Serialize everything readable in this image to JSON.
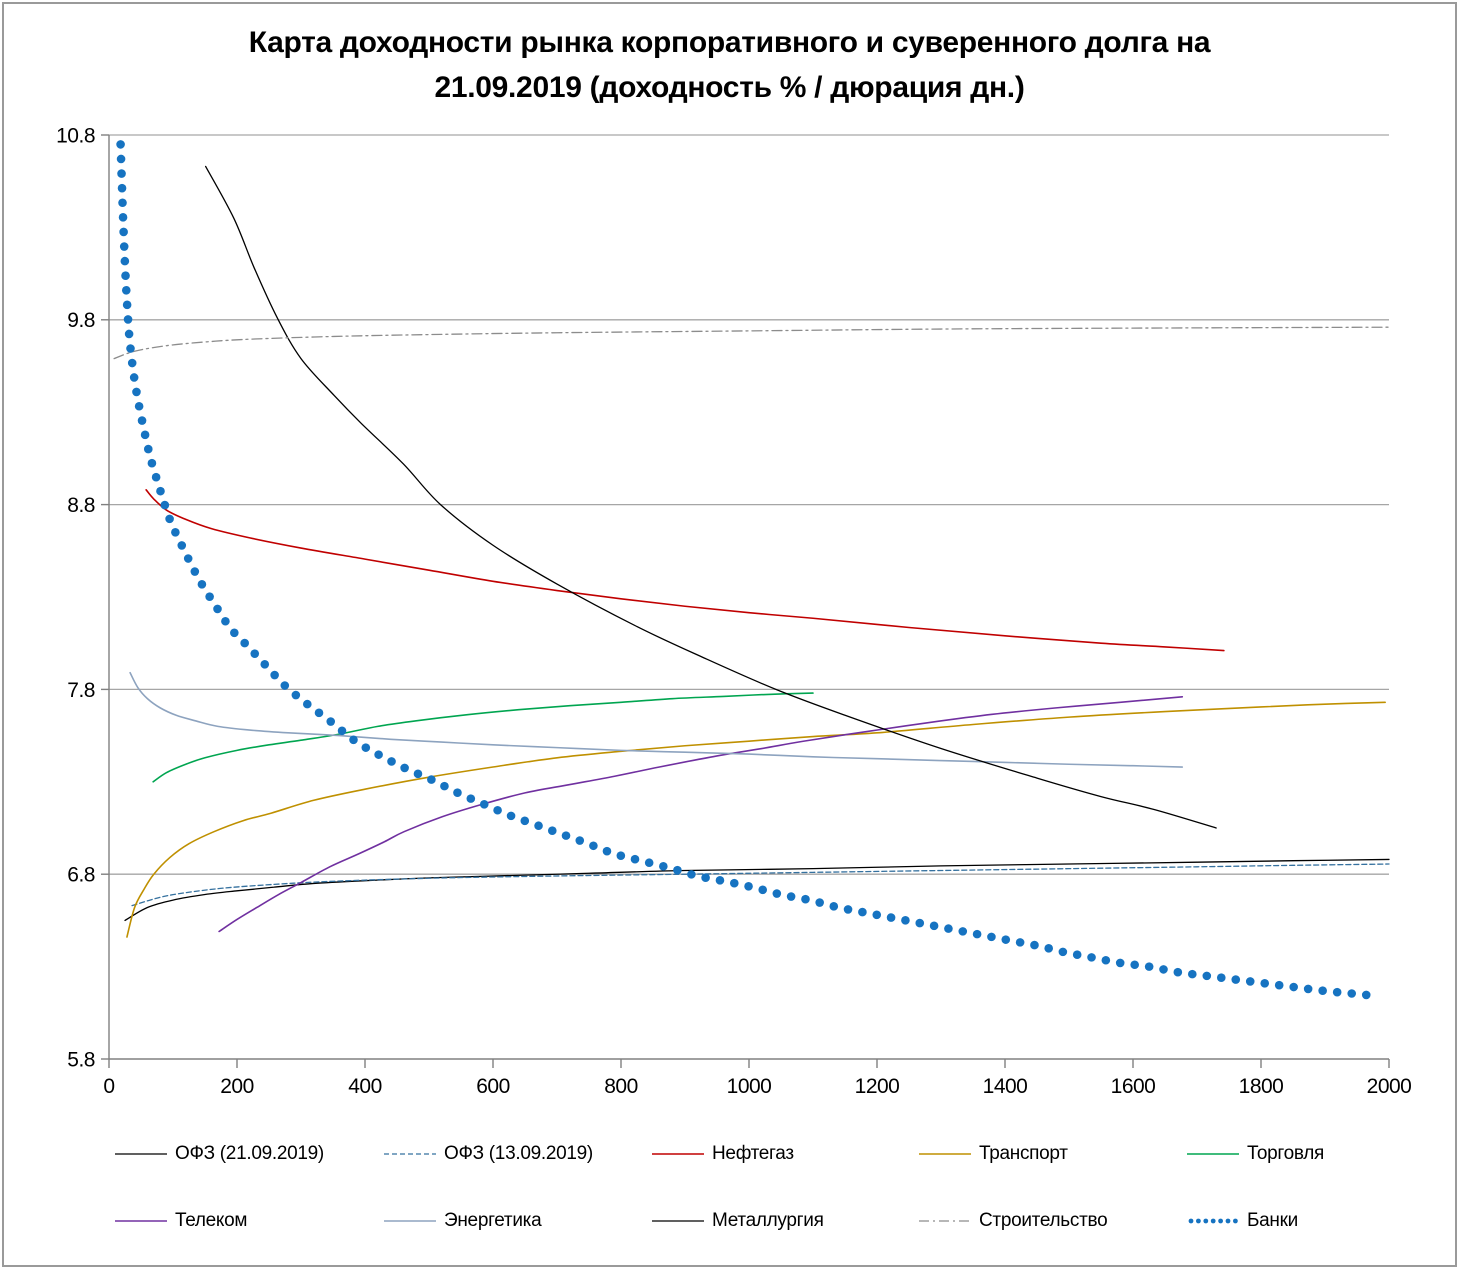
{
  "title": {
    "line1": "Карта доходности рынка корпоративного и суверенного долга на",
    "line2": "21.09.2019 (доходность % / дюрация дн.)"
  },
  "chart_data": {
    "type": "line",
    "title": "Карта доходности рынка корпоративного и суверенного долга на 21.09.2019 (доходность % / дюрация дн.)",
    "title_lines": [
      "Карта доходности рынка корпоративного и суверенного долга на",
      "21.09.2019 (доходность % / дюрация дн.)"
    ],
    "xlabel": "",
    "ylabel": "",
    "xlim": [
      0,
      2000
    ],
    "ylim": [
      5.8,
      10.8
    ],
    "x_ticks": [
      0,
      200,
      400,
      600,
      800,
      1000,
      1200,
      1400,
      1600,
      1800,
      2000
    ],
    "y_ticks": [
      10.8,
      9.8,
      8.8,
      7.8,
      6.8,
      5.8
    ],
    "grid": "horizontal",
    "legend_position": "bottom",
    "axis_color": "#808080",
    "grid_color": "#a6a6a6",
    "series": [
      {
        "name": "ОФЗ (21.09.2019)",
        "color": "#000000",
        "style": "solid",
        "width": 1.3,
        "points": [
          [
            25,
            6.55
          ],
          [
            60,
            6.62
          ],
          [
            100,
            6.66
          ],
          [
            150,
            6.69
          ],
          [
            200,
            6.71
          ],
          [
            258,
            6.73
          ],
          [
            320,
            6.75
          ],
          [
            400,
            6.765
          ],
          [
            500,
            6.78
          ],
          [
            600,
            6.79
          ],
          [
            750,
            6.805
          ],
          [
            900,
            6.82
          ],
          [
            1100,
            6.83
          ],
          [
            1300,
            6.845
          ],
          [
            1500,
            6.855
          ],
          [
            1700,
            6.865
          ],
          [
            1850,
            6.873
          ],
          [
            2000,
            6.88
          ]
        ]
      },
      {
        "name": "ОФЗ (13.09.2019)",
        "color": "#35719f",
        "style": "dashed",
        "width": 1.3,
        "points": [
          [
            36,
            6.63
          ],
          [
            80,
            6.675
          ],
          [
            120,
            6.7
          ],
          [
            180,
            6.725
          ],
          [
            258,
            6.745
          ],
          [
            320,
            6.757
          ],
          [
            400,
            6.768
          ],
          [
            500,
            6.778
          ],
          [
            600,
            6.785
          ],
          [
            750,
            6.793
          ],
          [
            900,
            6.8
          ],
          [
            1100,
            6.81
          ],
          [
            1300,
            6.82
          ],
          [
            1500,
            6.83
          ],
          [
            1700,
            6.84
          ],
          [
            1850,
            6.848
          ],
          [
            2000,
            6.855
          ]
        ]
      },
      {
        "name": "Нефтегаз",
        "color": "#c00000",
        "style": "solid",
        "width": 1.6,
        "points": [
          [
            58,
            8.88
          ],
          [
            70,
            8.83
          ],
          [
            90,
            8.77
          ],
          [
            120,
            8.72
          ],
          [
            160,
            8.67
          ],
          [
            220,
            8.62
          ],
          [
            300,
            8.565
          ],
          [
            400,
            8.505
          ],
          [
            500,
            8.445
          ],
          [
            600,
            8.385
          ],
          [
            700,
            8.335
          ],
          [
            800,
            8.29
          ],
          [
            900,
            8.25
          ],
          [
            1000,
            8.215
          ],
          [
            1100,
            8.185
          ],
          [
            1250,
            8.135
          ],
          [
            1400,
            8.09
          ],
          [
            1550,
            8.05
          ],
          [
            1650,
            8.03
          ],
          [
            1742,
            8.01
          ]
        ]
      },
      {
        "name": "Транспорт",
        "color": "#bf9000",
        "style": "solid",
        "width": 1.6,
        "points": [
          [
            28,
            6.46
          ],
          [
            40,
            6.62
          ],
          [
            55,
            6.72
          ],
          [
            70,
            6.8
          ],
          [
            95,
            6.89
          ],
          [
            125,
            6.965
          ],
          [
            164,
            7.03
          ],
          [
            210,
            7.09
          ],
          [
            253,
            7.13
          ],
          [
            320,
            7.2
          ],
          [
            400,
            7.26
          ],
          [
            500,
            7.325
          ],
          [
            600,
            7.38
          ],
          [
            700,
            7.43
          ],
          [
            800,
            7.465
          ],
          [
            900,
            7.495
          ],
          [
            1000,
            7.52
          ],
          [
            1100,
            7.545
          ],
          [
            1200,
            7.565
          ],
          [
            1350,
            7.61
          ],
          [
            1500,
            7.65
          ],
          [
            1650,
            7.68
          ],
          [
            1800,
            7.705
          ],
          [
            1900,
            7.72
          ],
          [
            1994,
            7.73
          ]
        ]
      },
      {
        "name": "Торговля",
        "color": "#00a550",
        "style": "solid",
        "width": 1.6,
        "points": [
          [
            69,
            7.3
          ],
          [
            90,
            7.35
          ],
          [
            120,
            7.395
          ],
          [
            150,
            7.43
          ],
          [
            200,
            7.47
          ],
          [
            250,
            7.5
          ],
          [
            300,
            7.525
          ],
          [
            360,
            7.558
          ],
          [
            420,
            7.6
          ],
          [
            480,
            7.63
          ],
          [
            560,
            7.663
          ],
          [
            640,
            7.69
          ],
          [
            720,
            7.712
          ],
          [
            800,
            7.73
          ],
          [
            880,
            7.75
          ],
          [
            960,
            7.762
          ],
          [
            1030,
            7.773
          ],
          [
            1100,
            7.78
          ]
        ]
      },
      {
        "name": "Телеком",
        "color": "#7030a0",
        "style": "solid",
        "width": 1.6,
        "points": [
          [
            172,
            6.49
          ],
          [
            200,
            6.555
          ],
          [
            231,
            6.62
          ],
          [
            265,
            6.69
          ],
          [
            300,
            6.755
          ],
          [
            345,
            6.84
          ],
          [
            390,
            6.91
          ],
          [
            430,
            6.975
          ],
          [
            461,
            7.03
          ],
          [
            520,
            7.11
          ],
          [
            580,
            7.175
          ],
          [
            650,
            7.24
          ],
          [
            720,
            7.285
          ],
          [
            790,
            7.33
          ],
          [
            860,
            7.38
          ],
          [
            950,
            7.44
          ],
          [
            1020,
            7.48
          ],
          [
            1086,
            7.52
          ],
          [
            1180,
            7.57
          ],
          [
            1280,
            7.62
          ],
          [
            1380,
            7.665
          ],
          [
            1480,
            7.7
          ],
          [
            1580,
            7.73
          ],
          [
            1677,
            7.76
          ]
        ]
      },
      {
        "name": "Энергетика",
        "color": "#8da3bf",
        "style": "solid",
        "width": 1.6,
        "points": [
          [
            33,
            7.89
          ],
          [
            45,
            7.81
          ],
          [
            60,
            7.75
          ],
          [
            80,
            7.7
          ],
          [
            105,
            7.66
          ],
          [
            135,
            7.63
          ],
          [
            170,
            7.6
          ],
          [
            220,
            7.58
          ],
          [
            280,
            7.565
          ],
          [
            360,
            7.55
          ],
          [
            440,
            7.53
          ],
          [
            520,
            7.515
          ],
          [
            600,
            7.5
          ],
          [
            700,
            7.485
          ],
          [
            800,
            7.47
          ],
          [
            900,
            7.46
          ],
          [
            1000,
            7.45
          ],
          [
            1100,
            7.435
          ],
          [
            1200,
            7.425
          ],
          [
            1350,
            7.41
          ],
          [
            1500,
            7.395
          ],
          [
            1600,
            7.387
          ],
          [
            1677,
            7.38
          ]
        ]
      },
      {
        "name": "Металлургия",
        "color": "#000000",
        "style": "solid",
        "width": 1.3,
        "points": [
          [
            151,
            10.63
          ],
          [
            195,
            10.35
          ],
          [
            227,
            10.08
          ],
          [
            263,
            9.81
          ],
          [
            300,
            9.59
          ],
          [
            352,
            9.39
          ],
          [
            394,
            9.24
          ],
          [
            460,
            9.02
          ],
          [
            518,
            8.8
          ],
          [
            600,
            8.58
          ],
          [
            700,
            8.37
          ],
          [
            825,
            8.14
          ],
          [
            930,
            7.97
          ],
          [
            1042,
            7.8
          ],
          [
            1150,
            7.66
          ],
          [
            1300,
            7.48
          ],
          [
            1450,
            7.32
          ],
          [
            1550,
            7.22
          ],
          [
            1633,
            7.15
          ],
          [
            1730,
            7.05
          ]
        ]
      },
      {
        "name": "Строительство",
        "color": "#8c8c8c",
        "style": "dashdot",
        "width": 1.3,
        "points": [
          [
            8,
            9.59
          ],
          [
            40,
            9.63
          ],
          [
            90,
            9.66
          ],
          [
            150,
            9.68
          ],
          [
            220,
            9.695
          ],
          [
            352,
            9.71
          ],
          [
            500,
            9.72
          ],
          [
            700,
            9.73
          ],
          [
            1000,
            9.74
          ],
          [
            1300,
            9.75
          ],
          [
            1600,
            9.755
          ],
          [
            2000,
            9.76
          ]
        ]
      },
      {
        "name": "Банки",
        "color": "#1673c1",
        "style": "dots",
        "width": 8.6,
        "points": [
          [
            18,
            10.76
          ],
          [
            20,
            10.55
          ],
          [
            22,
            10.35
          ],
          [
            25,
            10.1
          ],
          [
            28,
            9.9
          ],
          [
            32,
            9.7
          ],
          [
            38,
            9.52
          ],
          [
            45,
            9.37
          ],
          [
            55,
            9.2
          ],
          [
            65,
            9.05
          ],
          [
            78,
            8.9
          ],
          [
            95,
            8.72
          ],
          [
            115,
            8.57
          ],
          [
            140,
            8.4
          ],
          [
            165,
            8.26
          ],
          [
            190,
            8.13
          ],
          [
            215,
            8.04
          ],
          [
            245,
            7.93
          ],
          [
            275,
            7.82
          ],
          [
            310,
            7.72
          ],
          [
            345,
            7.63
          ],
          [
            385,
            7.52
          ],
          [
            425,
            7.44
          ],
          [
            465,
            7.37
          ],
          [
            505,
            7.31
          ],
          [
            545,
            7.24
          ],
          [
            585,
            7.18
          ],
          [
            625,
            7.12
          ],
          [
            665,
            7.07
          ],
          [
            705,
            7.02
          ],
          [
            745,
            6.97
          ],
          [
            790,
            6.91
          ],
          [
            835,
            6.87
          ],
          [
            880,
            6.83
          ],
          [
            920,
            6.79
          ],
          [
            965,
            6.76
          ],
          [
            1005,
            6.73
          ],
          [
            1050,
            6.69
          ],
          [
            1095,
            6.66
          ],
          [
            1140,
            6.62
          ],
          [
            1185,
            6.59
          ],
          [
            1230,
            6.56
          ],
          [
            1275,
            6.53
          ],
          [
            1320,
            6.5
          ],
          [
            1365,
            6.47
          ],
          [
            1410,
            6.44
          ],
          [
            1455,
            6.41
          ],
          [
            1490,
            6.38
          ],
          [
            1535,
            6.35
          ],
          [
            1580,
            6.32
          ],
          [
            1625,
            6.3
          ],
          [
            1670,
            6.27
          ],
          [
            1715,
            6.25
          ],
          [
            1760,
            6.23
          ],
          [
            1805,
            6.21
          ],
          [
            1850,
            6.19
          ],
          [
            1895,
            6.17
          ],
          [
            1940,
            6.155
          ],
          [
            1985,
            6.14
          ]
        ]
      }
    ],
    "legend_rows": [
      [
        "ОФЗ (21.09.2019)",
        "ОФЗ (13.09.2019)",
        "Нефтегаз",
        "Транспорт",
        "Торговля"
      ],
      [
        "Телеком",
        "Энергетика",
        "Металлургия",
        "Строительство",
        "Банки"
      ]
    ]
  }
}
